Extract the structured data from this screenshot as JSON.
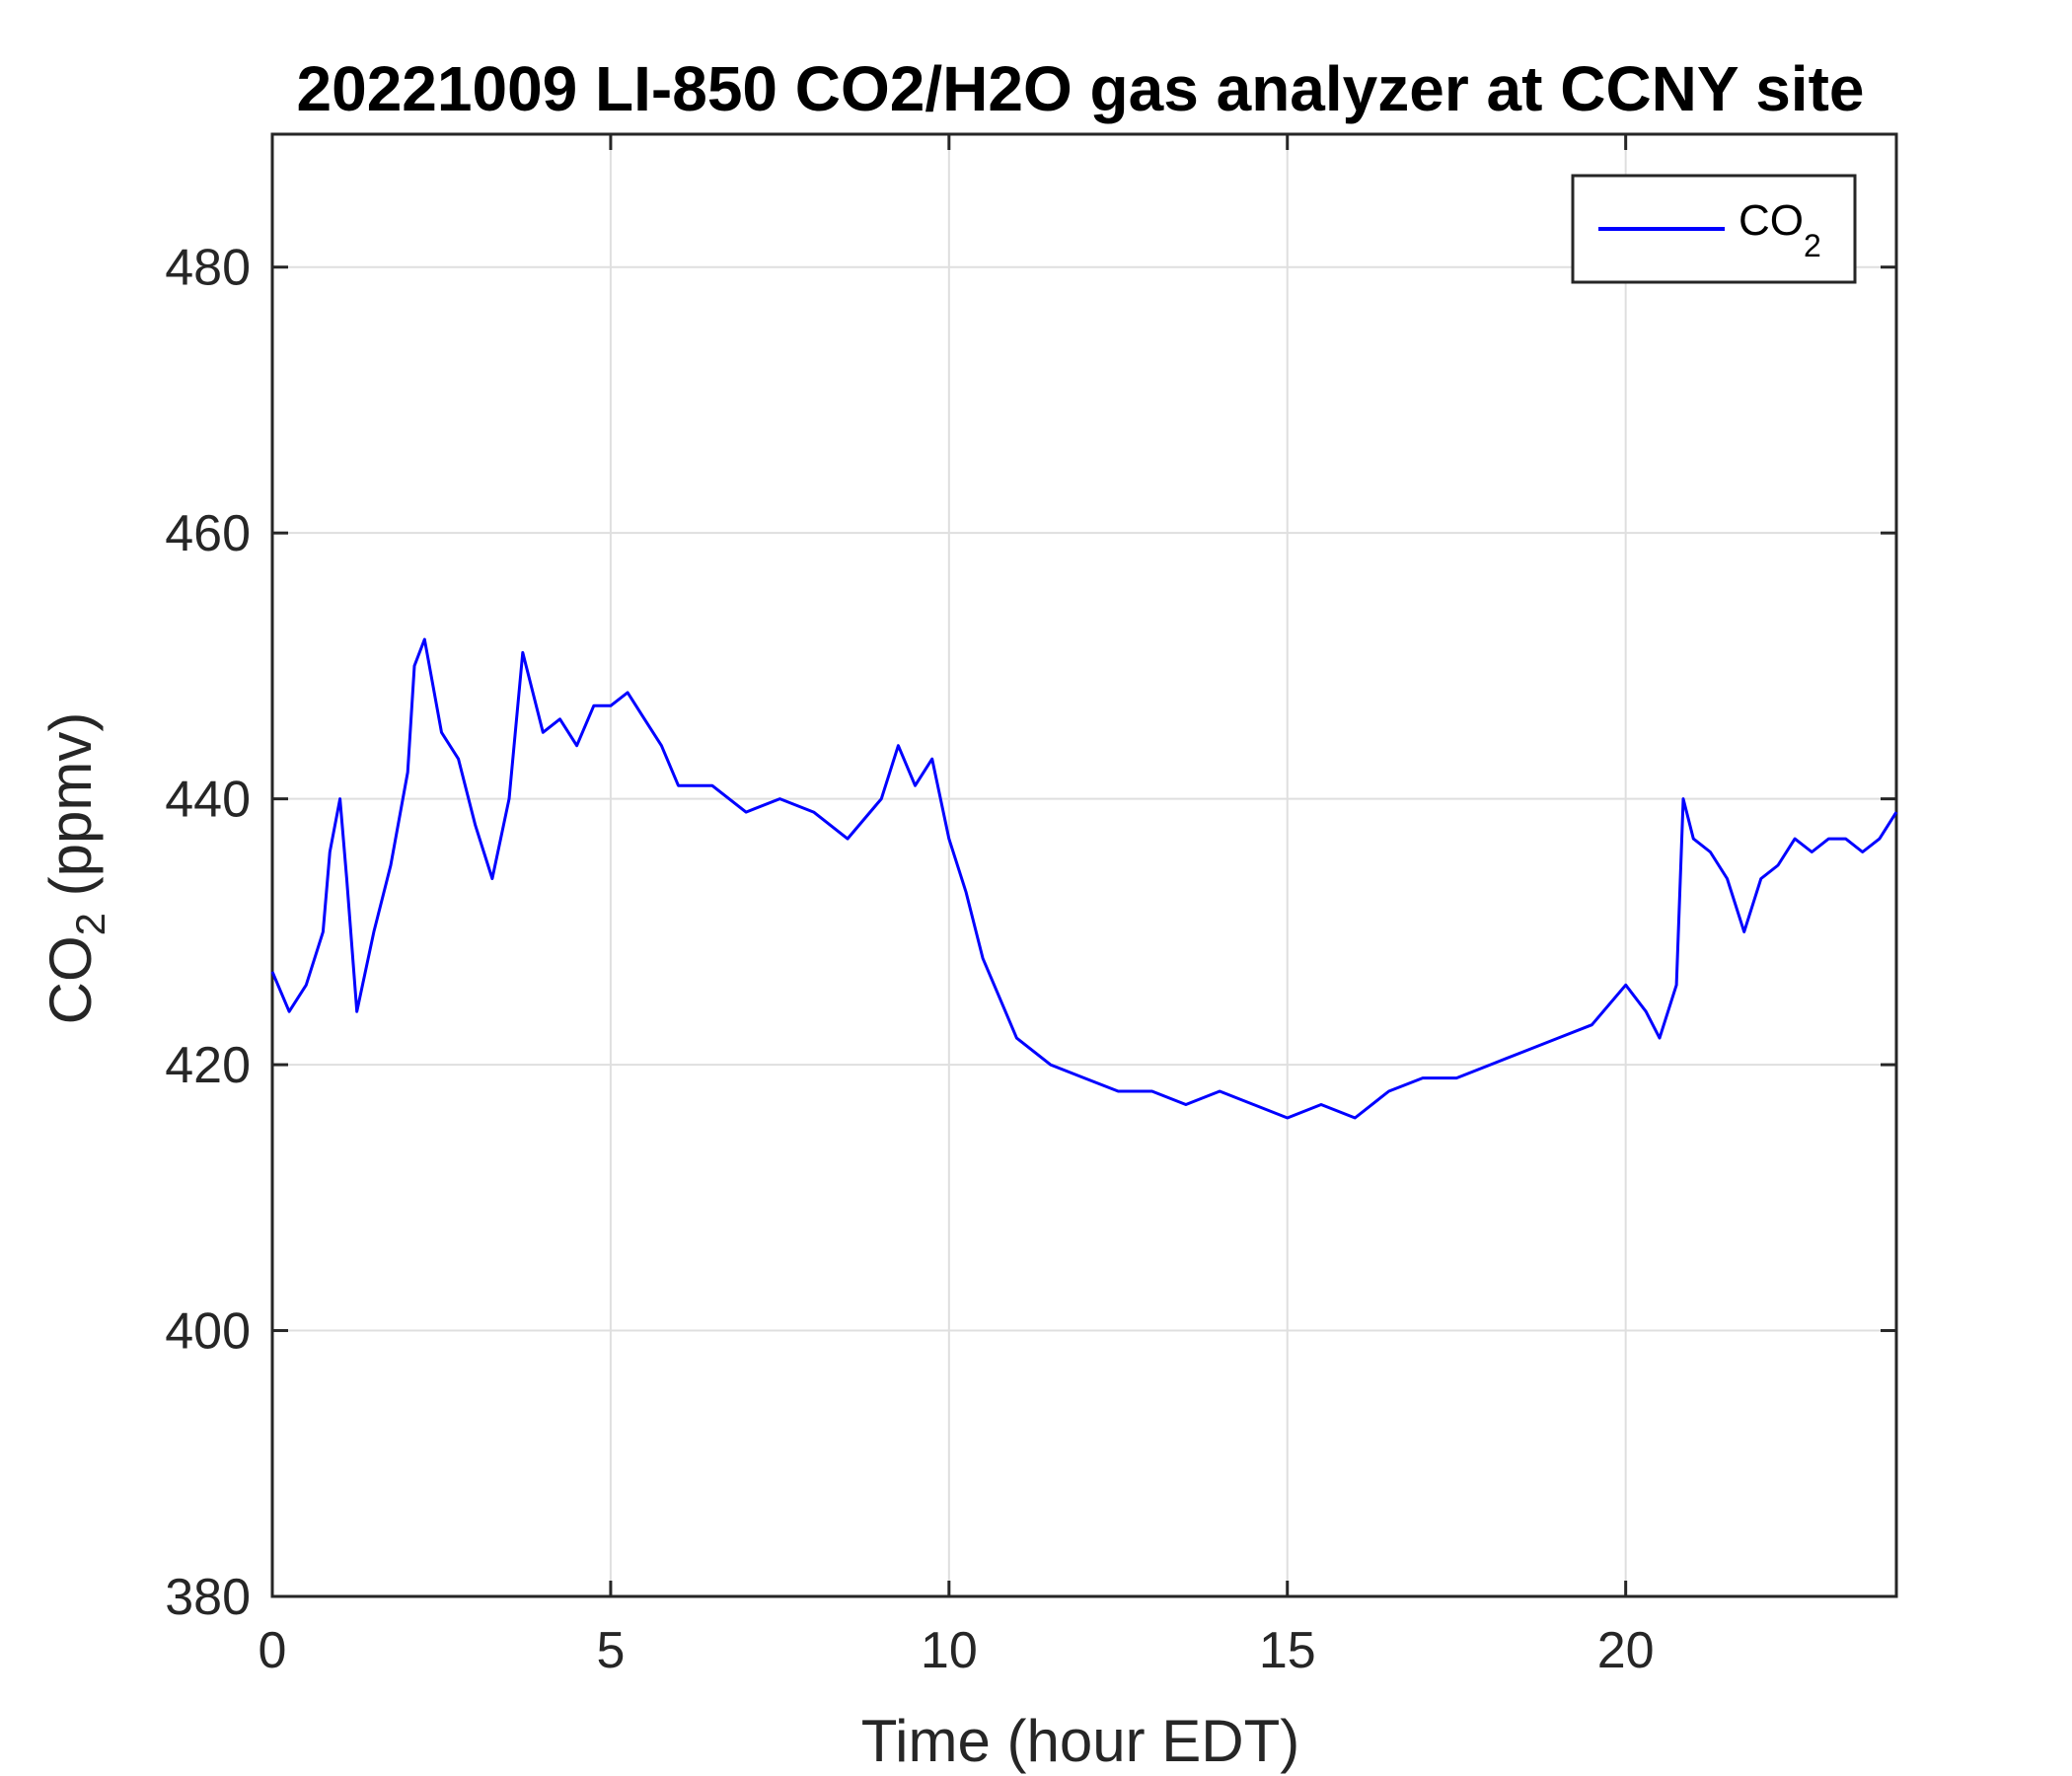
{
  "chart_data": {
    "type": "line",
    "title": "20221009 LI-850 CO2/H2O gas analyzer at CCNY site",
    "xlabel": "Time (hour EDT)",
    "ylabel_main": "CO",
    "ylabel_sub": "2",
    "ylabel_rest": " (ppmv)",
    "xlim": [
      0,
      24
    ],
    "ylim": [
      380,
      490
    ],
    "xticks": [
      0,
      5,
      10,
      15,
      20
    ],
    "xtick_labels": [
      "0",
      "5",
      "10",
      "15",
      "20"
    ],
    "yticks": [
      380,
      400,
      420,
      440,
      460,
      480
    ],
    "ytick_labels": [
      "380",
      "400",
      "420",
      "440",
      "460",
      "480"
    ],
    "grid": true,
    "legend_position": "top-right",
    "series": [
      {
        "legend_main": "CO",
        "legend_sub": "2",
        "color": "#0000ff",
        "x": [
          0,
          0.25,
          0.5,
          0.75,
          0.85,
          1.0,
          1.1,
          1.25,
          1.5,
          1.75,
          2.0,
          2.1,
          2.25,
          2.5,
          2.75,
          3.0,
          3.25,
          3.5,
          3.7,
          4.0,
          4.25,
          4.5,
          4.75,
          5.0,
          5.25,
          5.5,
          5.75,
          6.0,
          6.5,
          7.0,
          7.5,
          8.0,
          8.5,
          9.0,
          9.25,
          9.5,
          9.75,
          10.0,
          10.25,
          10.5,
          10.75,
          11.0,
          11.5,
          12.0,
          12.5,
          13.0,
          13.5,
          14.0,
          14.5,
          15.0,
          15.5,
          16.0,
          16.5,
          17.0,
          17.5,
          18.0,
          18.5,
          19.0,
          19.5,
          20.0,
          20.3,
          20.5,
          20.75,
          20.85,
          21.0,
          21.25,
          21.5,
          21.75,
          22.0,
          22.25,
          22.5,
          22.75,
          23.0,
          23.25,
          23.5,
          23.75,
          24.0
        ],
        "y": [
          427,
          424,
          426,
          430,
          436,
          440,
          434,
          424,
          430,
          435,
          442,
          450,
          452,
          445,
          443,
          438,
          434,
          440,
          451,
          445,
          446,
          444,
          447,
          447,
          448,
          446,
          444,
          441,
          441,
          439,
          440,
          439,
          437,
          440,
          444,
          441,
          443,
          437,
          433,
          428,
          425,
          422,
          420,
          419,
          418,
          418,
          417,
          418,
          417,
          416,
          417,
          416,
          418,
          419,
          419,
          420,
          421,
          422,
          423,
          426,
          424,
          422,
          426,
          440,
          437,
          436,
          434,
          430,
          434,
          435,
          437,
          436,
          437,
          437,
          436,
          437,
          439
        ]
      }
    ]
  }
}
